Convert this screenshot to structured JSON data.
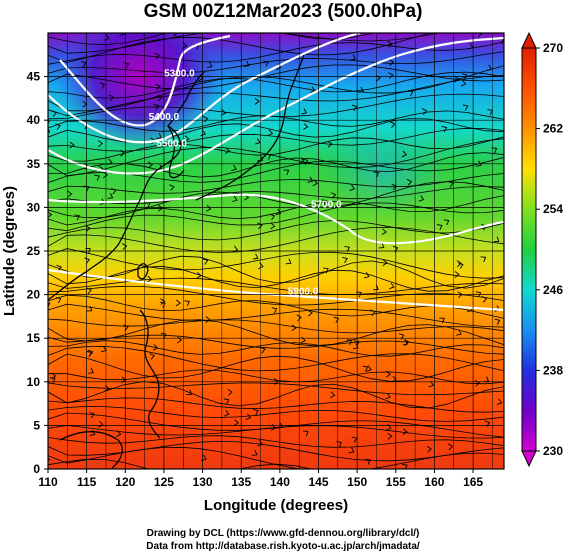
{
  "title": "GSM 00Z12Mar2023 (500.0hPa)",
  "chart_data": {
    "type": "heatmap",
    "variable_units": "hPa",
    "xlabel": "Longitude (degrees)",
    "ylabel": "Latitude  (degrees)",
    "xlim": [
      110,
      169
    ],
    "ylim": [
      0,
      50
    ],
    "xticks": [
      110,
      115,
      120,
      125,
      130,
      135,
      140,
      145,
      150,
      155,
      160,
      165
    ],
    "yticks": [
      0,
      5,
      10,
      15,
      20,
      25,
      30,
      35,
      40,
      45
    ],
    "grid": true,
    "colorbar": {
      "min": 230,
      "max": 270,
      "ticks": [
        230,
        238,
        246,
        254,
        262,
        270
      ],
      "extend": "both",
      "palette": [
        "#d000d0",
        "#7000c8",
        "#2030e0",
        "#1aa0f0",
        "#10d8c0",
        "#20d040",
        "#a0e020",
        "#ffe000",
        "#ff9000",
        "#ff5000",
        "#e02000"
      ]
    },
    "contour_labels": [
      {
        "text": "5300.0",
        "lon": 127,
        "lat": 45
      },
      {
        "text": "5400.0",
        "lon": 125,
        "lat": 40
      },
      {
        "text": "5500.0",
        "lon": 126,
        "lat": 37
      },
      {
        "text": "5700.0",
        "lon": 146,
        "lat": 30
      },
      {
        "text": "5900.0",
        "lon": 143,
        "lat": 20
      }
    ]
  },
  "credits": {
    "line1": "Drawing by DCL (https://www.gfd-dennou.org/library/dcl/)",
    "line2": "Data from http://database.rish.kyoto-u.ac.jp/arch/jmadata/"
  }
}
